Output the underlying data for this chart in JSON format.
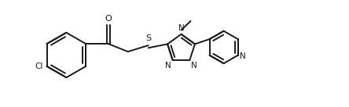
{
  "background": "#ffffff",
  "line_color": "#1a1a1a",
  "line_width": 1.4,
  "fig_width": 4.44,
  "fig_height": 1.37,
  "dpi": 100,
  "xlim": [
    -0.5,
    10.5
  ],
  "ylim": [
    -0.2,
    3.2
  ]
}
